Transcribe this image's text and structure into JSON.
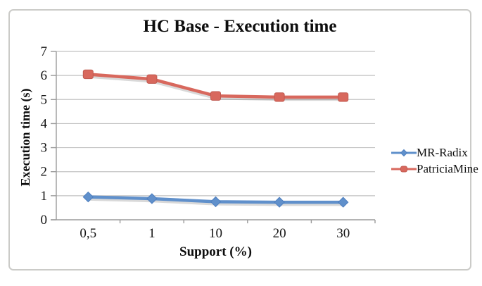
{
  "frame": {
    "border_color": "#cbcbc8",
    "background": "#ffffff"
  },
  "chart_data": {
    "type": "line",
    "title": "HC Base - Execution time",
    "xlabel": "Support (%)",
    "ylabel": "Execution time (s)",
    "categories": [
      "0,5",
      "1",
      "10",
      "20",
      "30"
    ],
    "y_ticks": [
      0,
      1,
      2,
      3,
      4,
      5,
      6,
      7
    ],
    "ylim": [
      0,
      7
    ],
    "grid": true,
    "legend_position": "right",
    "series": [
      {
        "name": "MR-Radix",
        "marker": "diamond",
        "color": "#6090cb",
        "edge": "#4d7ebf",
        "values": [
          0.95,
          0.88,
          0.75,
          0.73,
          0.73
        ]
      },
      {
        "name": "PatriciaMine",
        "marker": "square",
        "color": "#d8685d",
        "edge": "#c05a50",
        "values": [
          6.05,
          5.85,
          5.15,
          5.1,
          5.1
        ]
      }
    ],
    "colors": {
      "gridline": "#c2c2c2",
      "axis": "#9b9b9b",
      "tick_text": "#141414",
      "shadow": "rgba(120,120,120,0.28)"
    }
  }
}
